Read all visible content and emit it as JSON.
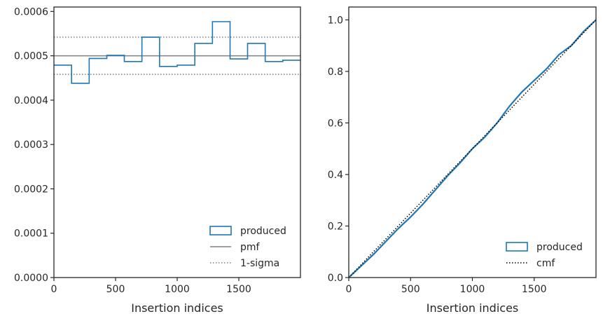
{
  "chart_data": [
    {
      "type": "histogram-step",
      "xlabel": "Insertion indices",
      "ylabel": "",
      "xlim": [
        0,
        2000
      ],
      "ylim": [
        0,
        0.00061
      ],
      "x_ticks": [
        0,
        500,
        1000,
        1500
      ],
      "x_tick_labels": [
        "0",
        "500",
        "1000",
        "1500"
      ],
      "y_ticks": [
        0,
        0.0001,
        0.0002,
        0.0003,
        0.0004,
        0.0005,
        0.0006
      ],
      "y_tick_labels": [
        "0.0000",
        "0.0001",
        "0.0002",
        "0.0003",
        "0.0004",
        "0.0005",
        "0.0006"
      ],
      "bin_edges": [
        0,
        143,
        286,
        429,
        571,
        714,
        857,
        1000,
        1143,
        1286,
        1429,
        1571,
        1714,
        1857,
        2000
      ],
      "series": [
        {
          "name": "produced",
          "kind": "step",
          "color": "#1f77b4",
          "values": [
            0.000479,
            0.000438,
            0.000494,
            0.000501,
            0.000487,
            0.000542,
            0.000476,
            0.000479,
            0.000528,
            0.000577,
            0.000493,
            0.000528,
            0.000487,
            0.00049
          ]
        },
        {
          "name": "pmf",
          "kind": "hline",
          "color": "#808080",
          "y": 0.0005
        },
        {
          "name": "1-sigma",
          "kind": "hline-pair",
          "color": "#808080",
          "y": [
            0.000458,
            0.000542
          ]
        }
      ],
      "legend": {
        "position": "lower-right",
        "entries": [
          {
            "label": "produced",
            "kind": "patch"
          },
          {
            "label": "pmf",
            "kind": "solid"
          },
          {
            "label": "1-sigma",
            "kind": "dotted"
          }
        ]
      }
    },
    {
      "type": "line",
      "xlabel": "Insertion indices",
      "ylabel": "",
      "xlim": [
        0,
        2000
      ],
      "ylim": [
        0,
        1.05
      ],
      "x_ticks": [
        0,
        500,
        1000,
        1500
      ],
      "x_tick_labels": [
        "0",
        "500",
        "1000",
        "1500"
      ],
      "y_ticks": [
        0,
        0.2,
        0.4,
        0.6,
        0.8,
        1.0
      ],
      "y_tick_labels": [
        "0.0",
        "0.2",
        "0.4",
        "0.6",
        "0.8",
        "1.0"
      ],
      "series": [
        {
          "name": "produced",
          "kind": "line",
          "color": "#1f77b4",
          "x": [
            0,
            100,
            200,
            300,
            400,
            500,
            600,
            700,
            800,
            900,
            1000,
            1100,
            1200,
            1300,
            1400,
            1500,
            1600,
            1700,
            1800,
            1900,
            2000
          ],
          "y": [
            0,
            0.045,
            0.09,
            0.14,
            0.19,
            0.235,
            0.285,
            0.34,
            0.395,
            0.445,
            0.5,
            0.545,
            0.6,
            0.665,
            0.72,
            0.765,
            0.81,
            0.865,
            0.9,
            0.955,
            1.0
          ]
        },
        {
          "name": "cmf",
          "kind": "line-dotted",
          "color": "#000000",
          "x": [
            0,
            2000
          ],
          "y": [
            0,
            1.0
          ]
        }
      ],
      "legend": {
        "position": "lower-right",
        "entries": [
          {
            "label": "produced",
            "kind": "patch"
          },
          {
            "label": "cmf",
            "kind": "dotted-black"
          }
        ]
      }
    }
  ]
}
